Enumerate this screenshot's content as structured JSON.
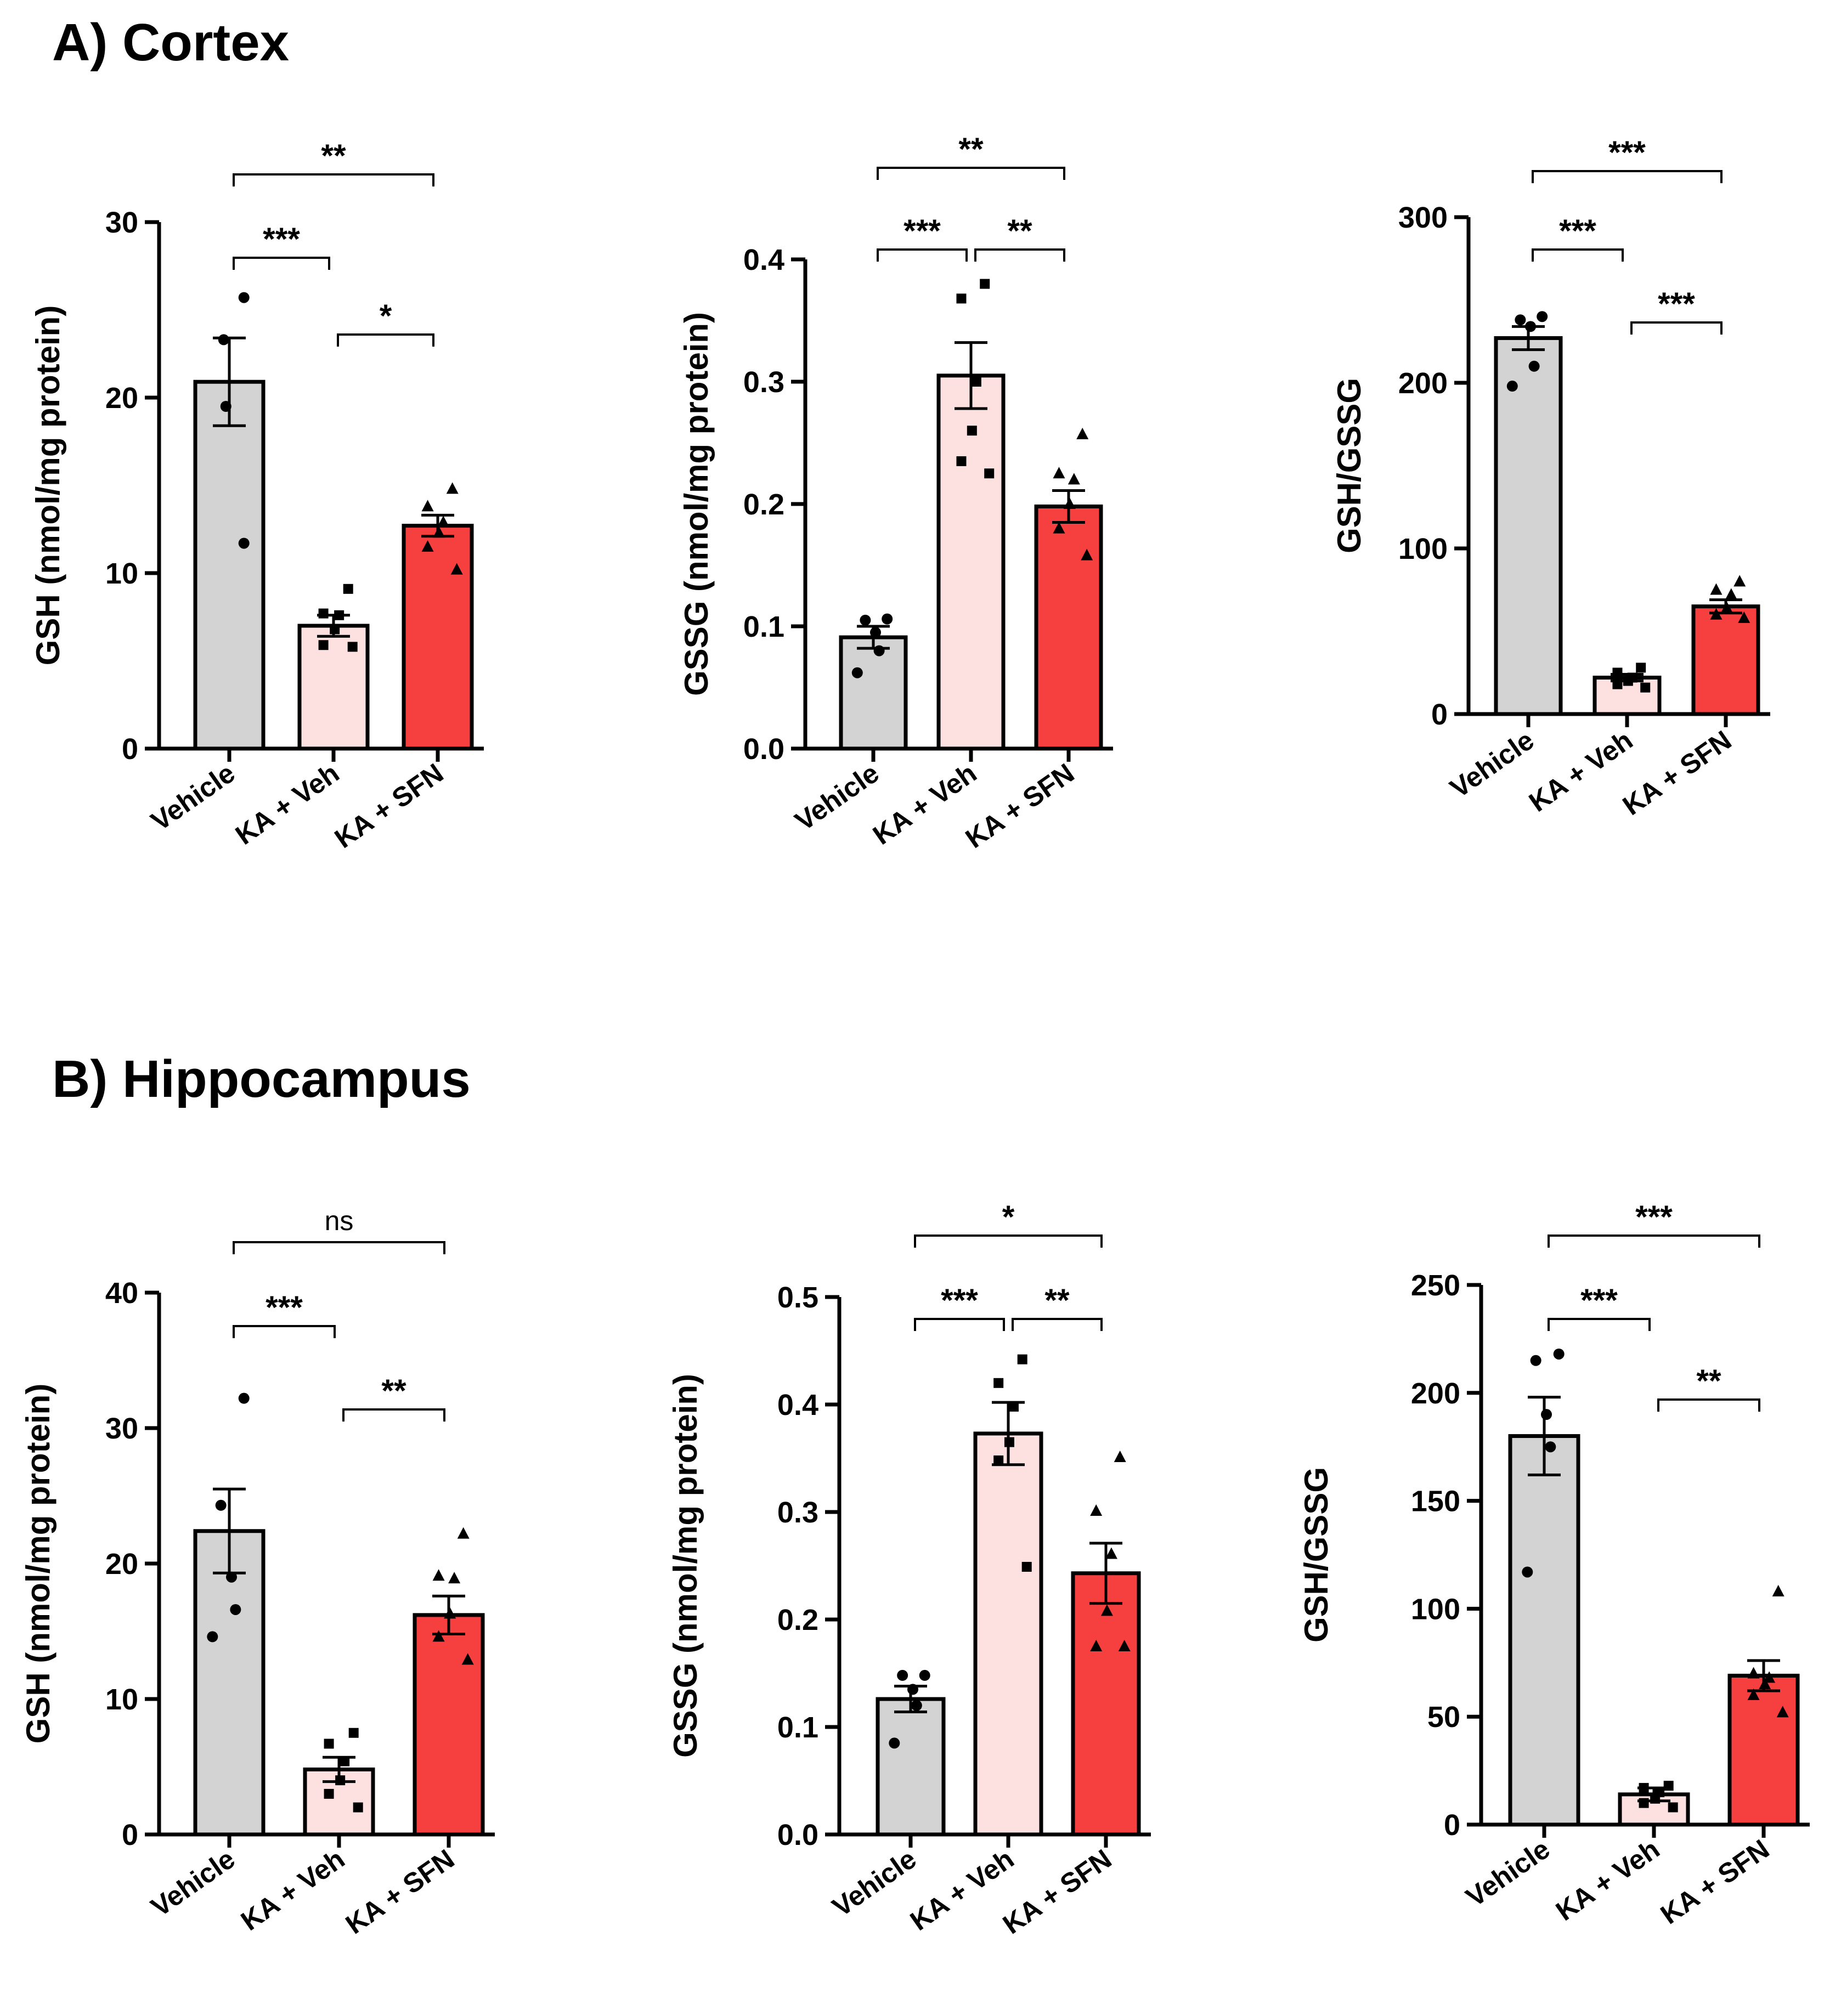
{
  "panels": [
    {
      "label": "A) Cortex"
    },
    {
      "label": "B) Hippocampus"
    }
  ],
  "colors": {
    "Vehicle": "#d3d3d3",
    "KA + Veh": "#fde0e0",
    "KA + SFN": "#f5403f",
    "outline": "#000000"
  },
  "chart_data": [
    {
      "type": "bar",
      "panel": "A) Cortex",
      "categories": [
        "Vehicle",
        "KA + Veh",
        "KA + SFN"
      ],
      "values": [
        20.9,
        7.0,
        12.7
      ],
      "sem": [
        2.5,
        0.6,
        0.6
      ],
      "points": [
        [
          25.7,
          23.3,
          19.5,
          11.7
        ],
        [
          9.1,
          7.7,
          7.6,
          6.8,
          5.9,
          5.8
        ],
        [
          14.8,
          13.8,
          12.9,
          12.3,
          11.5,
          10.2
        ]
      ],
      "markers": [
        "circle",
        "square",
        "triangle"
      ],
      "ylabel": "GSH (nmol/mg protein)",
      "ylim": [
        0,
        30
      ],
      "yticks": [
        0,
        10,
        20,
        30
      ],
      "ytick_labels": [
        "0",
        "10",
        "20",
        "30"
      ],
      "significance": [
        {
          "from": 0,
          "to": 1,
          "label": "***"
        },
        {
          "from": 1,
          "to": 2,
          "label": "*"
        },
        {
          "from": 0,
          "to": 2,
          "label": "**"
        }
      ]
    },
    {
      "type": "bar",
      "panel": "A) Cortex",
      "categories": [
        "Vehicle",
        "KA + Veh",
        "KA + SFN"
      ],
      "values": [
        0.091,
        0.305,
        0.198
      ],
      "sem": [
        0.009,
        0.027,
        0.013
      ],
      "points": [
        [
          0.106,
          0.105,
          0.095,
          0.08,
          0.062
        ],
        [
          0.38,
          0.368,
          0.3,
          0.26,
          0.235,
          0.225
        ],
        [
          0.257,
          0.225,
          0.22,
          0.2,
          0.18,
          0.158
        ]
      ],
      "markers": [
        "circle",
        "square",
        "triangle"
      ],
      "ylabel": "GSSG (nmol/mg protein)",
      "ylim": [
        0,
        0.4
      ],
      "yticks": [
        0,
        0.1,
        0.2,
        0.3,
        0.4
      ],
      "ytick_labels": [
        "0.0",
        "0.1",
        "0.2",
        "0.3",
        "0.4"
      ],
      "significance": [
        {
          "from": 0,
          "to": 1,
          "label": "***"
        },
        {
          "from": 1,
          "to": 2,
          "label": "**"
        },
        {
          "from": 0,
          "to": 2,
          "label": "**"
        }
      ]
    },
    {
      "type": "bar",
      "panel": "A) Cortex",
      "categories": [
        "Vehicle",
        "KA + Veh",
        "KA + SFN"
      ],
      "values": [
        227,
        22,
        65
      ],
      "sem": [
        7,
        2,
        4
      ],
      "points": [
        [
          240,
          238,
          234,
          210,
          198
        ],
        [
          28,
          25,
          22,
          20,
          18,
          16
        ],
        [
          80,
          75,
          72,
          64,
          60,
          58
        ]
      ],
      "markers": [
        "circle",
        "square",
        "triangle"
      ],
      "ylabel": "GSH/GSSG",
      "ylim": [
        0,
        300
      ],
      "yticks": [
        0,
        100,
        200,
        300
      ],
      "ytick_labels": [
        "0",
        "100",
        "200",
        "300"
      ],
      "significance": [
        {
          "from": 0,
          "to": 1,
          "label": "***"
        },
        {
          "from": 1,
          "to": 2,
          "label": "***"
        },
        {
          "from": 0,
          "to": 2,
          "label": "***"
        }
      ]
    },
    {
      "type": "bar",
      "panel": "B) Hippocampus",
      "categories": [
        "Vehicle",
        "KA + Veh",
        "KA + SFN"
      ],
      "values": [
        22.4,
        4.8,
        16.2
      ],
      "sem": [
        3.1,
        0.9,
        1.4
      ],
      "points": [
        [
          32.2,
          24.3,
          19.0,
          16.6,
          14.6
        ],
        [
          7.5,
          6.7,
          5.4,
          4.0,
          3.0,
          2.0
        ],
        [
          22.2,
          19.1,
          18.9,
          16.3,
          14.6,
          12.9
        ]
      ],
      "markers": [
        "circle",
        "square",
        "triangle"
      ],
      "ylabel": "GSH (nmol/mg protein)",
      "ylim": [
        0,
        40
      ],
      "yticks": [
        0,
        10,
        20,
        30,
        40
      ],
      "ytick_labels": [
        "0",
        "10",
        "20",
        "30",
        "40"
      ],
      "significance": [
        {
          "from": 0,
          "to": 1,
          "label": "***"
        },
        {
          "from": 1,
          "to": 2,
          "label": "**"
        },
        {
          "from": 0,
          "to": 2,
          "label": "ns"
        }
      ]
    },
    {
      "type": "bar",
      "panel": "B) Hippocampus",
      "categories": [
        "Vehicle",
        "KA + Veh",
        "KA + SFN"
      ],
      "values": [
        0.126,
        0.373,
        0.243
      ],
      "sem": [
        0.012,
        0.029,
        0.028
      ],
      "points": [
        [
          0.148,
          0.148,
          0.135,
          0.12,
          0.085
        ],
        [
          0.442,
          0.42,
          0.398,
          0.365,
          0.348,
          0.249
        ],
        [
          0.351,
          0.301,
          0.261,
          0.208,
          0.175,
          0.175
        ]
      ],
      "markers": [
        "circle",
        "square",
        "triangle"
      ],
      "ylabel": "GSSG (nmol/mg protein)",
      "ylim": [
        0,
        0.5
      ],
      "yticks": [
        0,
        0.1,
        0.2,
        0.3,
        0.4,
        0.5
      ],
      "ytick_labels": [
        "0.0",
        "0.1",
        "0.2",
        "0.3",
        "0.4",
        "0.5"
      ],
      "significance": [
        {
          "from": 0,
          "to": 1,
          "label": "***"
        },
        {
          "from": 1,
          "to": 2,
          "label": "**"
        },
        {
          "from": 0,
          "to": 2,
          "label": "*"
        }
      ]
    },
    {
      "type": "bar",
      "panel": "B) Hippocampus",
      "categories": [
        "Vehicle",
        "KA + Veh",
        "KA + SFN"
      ],
      "values": [
        180,
        14,
        69
      ],
      "sem": [
        18,
        3,
        7
      ],
      "points": [
        [
          218,
          215,
          190,
          175,
          117
        ],
        [
          18,
          17,
          15,
          12,
          10,
          8
        ],
        [
          108,
          70,
          68,
          65,
          60,
          52
        ]
      ],
      "markers": [
        "circle",
        "square",
        "triangle"
      ],
      "ylabel": "GSH/GSSG",
      "ylim": [
        0,
        250
      ],
      "yticks": [
        0,
        50,
        100,
        150,
        200,
        250
      ],
      "ytick_labels": [
        "0",
        "50",
        "100",
        "150",
        "200",
        "250"
      ],
      "significance": [
        {
          "from": 0,
          "to": 1,
          "label": "***"
        },
        {
          "from": 1,
          "to": 2,
          "label": "**"
        },
        {
          "from": 0,
          "to": 2,
          "label": "***"
        }
      ]
    }
  ]
}
